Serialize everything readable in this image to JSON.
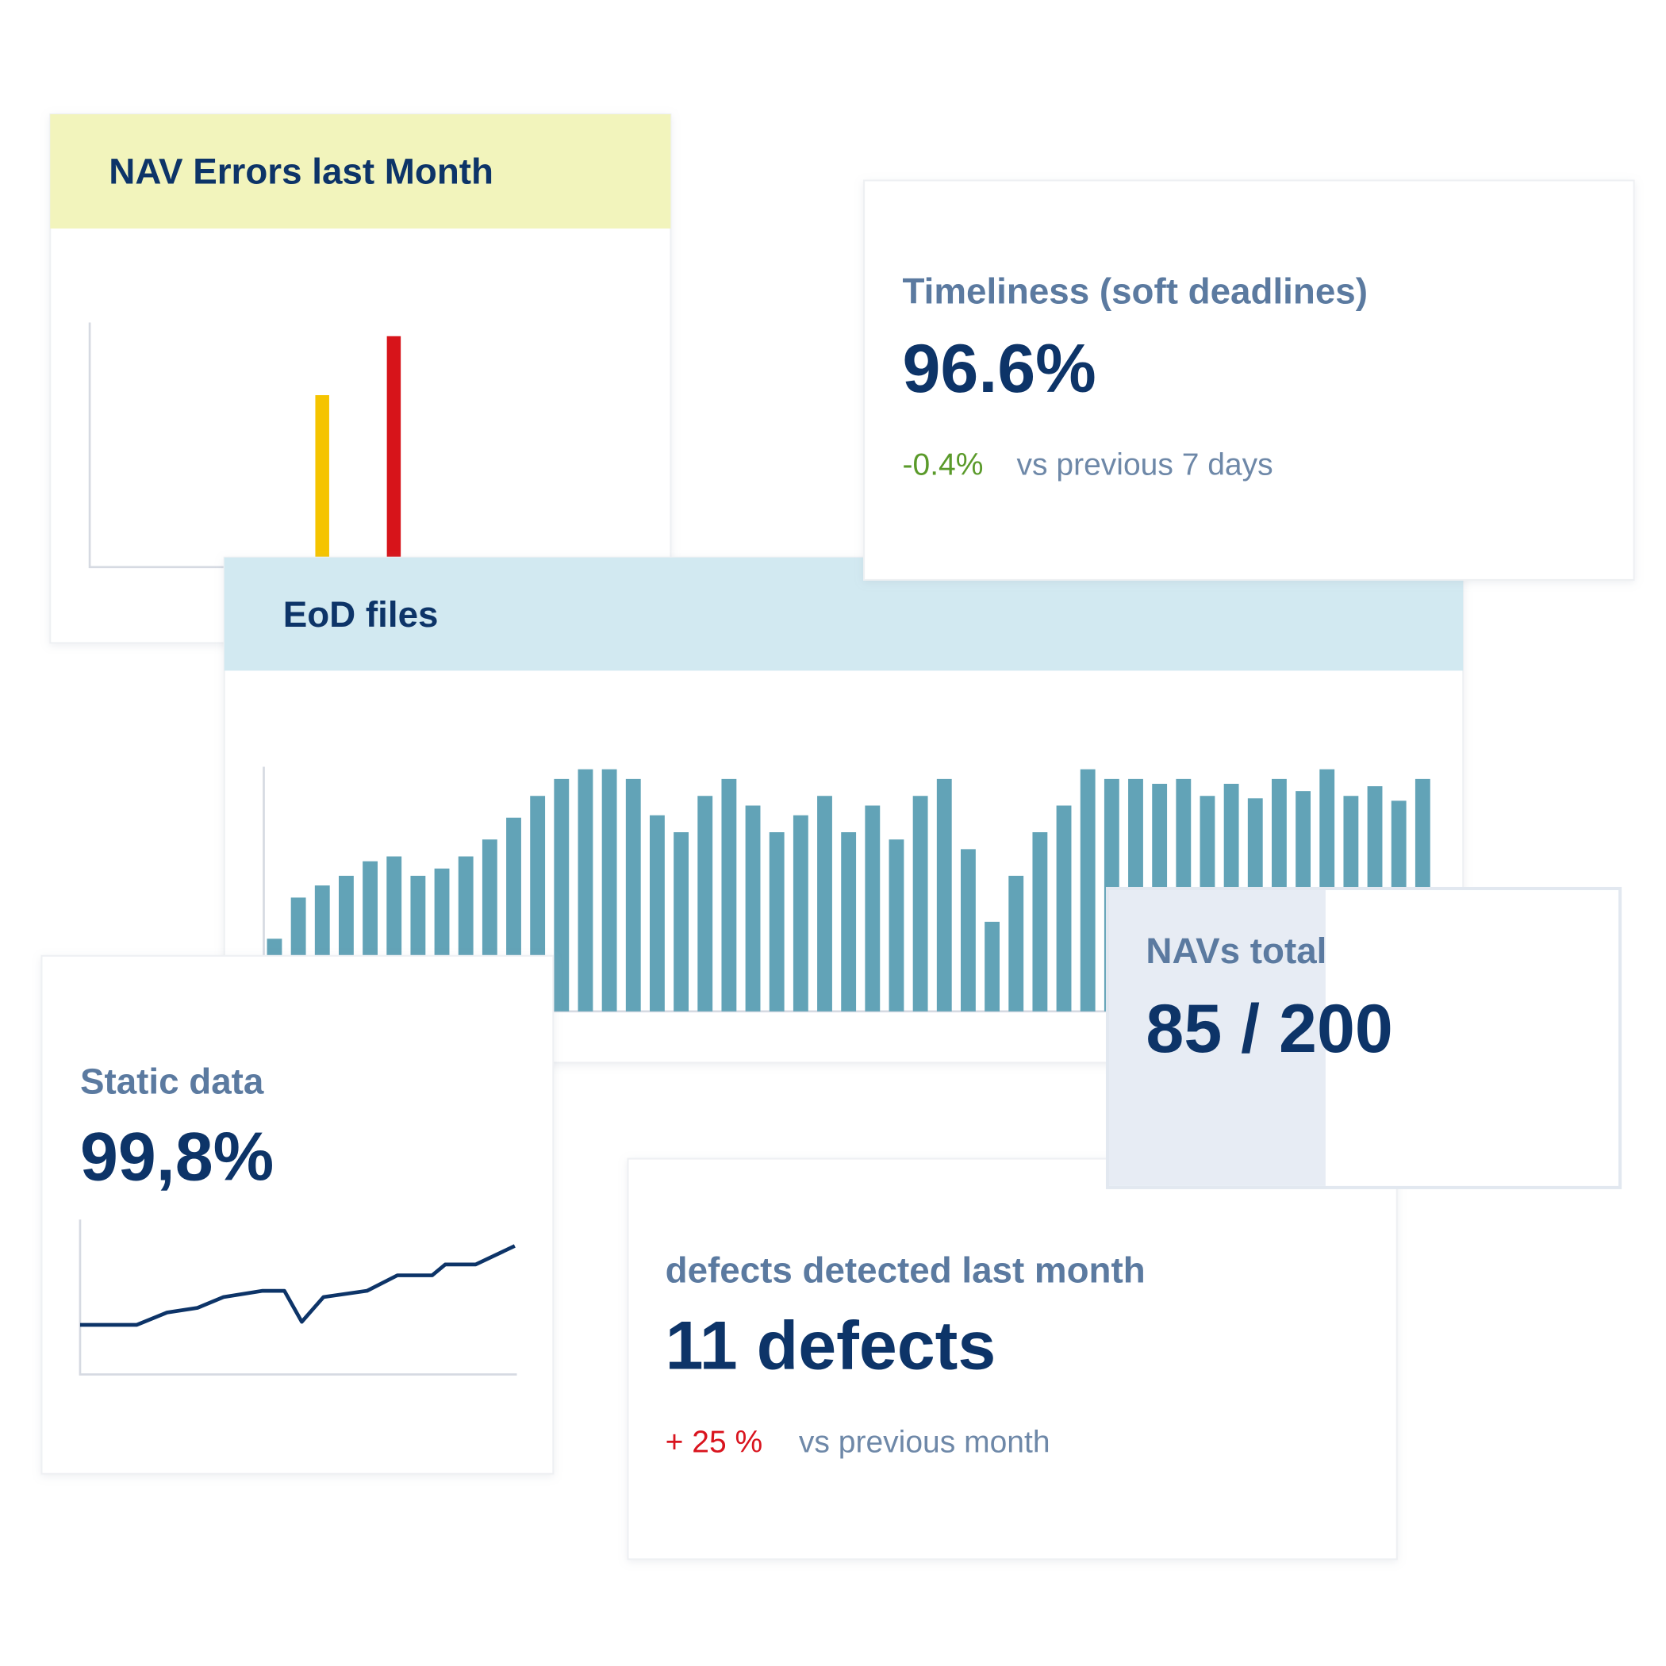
{
  "chart_data": [
    {
      "type": "bar",
      "title": "NAV Errors last Month",
      "values": [
        null,
        null,
        null,
        null,
        null,
        null,
        70,
        null,
        94,
        null,
        null,
        null,
        null,
        null,
        null,
        null
      ],
      "colors": [
        null,
        null,
        null,
        null,
        null,
        null,
        "#f5c400",
        null,
        "#d7141a",
        null,
        null,
        null,
        null,
        null,
        null,
        null
      ],
      "ylim": [
        0,
        100
      ]
    },
    {
      "type": "bar",
      "title": "EoD files",
      "values": [
        30,
        47,
        52,
        56,
        62,
        64,
        56,
        59,
        64,
        71,
        80,
        89,
        96,
        100,
        100,
        96,
        81,
        74,
        89,
        96,
        85,
        74,
        81,
        89,
        74,
        85,
        71,
        89,
        96,
        67,
        37,
        56,
        74,
        85,
        100,
        96,
        96,
        94,
        96,
        89,
        94,
        88,
        96,
        91,
        100,
        89,
        93,
        87,
        96
      ],
      "color": "#62a3b7",
      "ylim": [
        0,
        105
      ]
    },
    {
      "type": "line",
      "title": "Static data",
      "value": "99,8%",
      "x": [
        0,
        13,
        20,
        27,
        33,
        42,
        47,
        51,
        56,
        66,
        73,
        81,
        84,
        91,
        100
      ],
      "values": [
        32,
        32,
        40,
        43,
        50,
        54,
        54,
        34,
        50,
        54,
        64,
        64,
        71,
        71,
        83
      ],
      "color": "#0d3468",
      "xlim": [
        0,
        100
      ],
      "ylim": [
        0,
        100
      ]
    }
  ],
  "cards": [
    {
      "title": "Timeliness (soft deadlines)",
      "value": "96.6%",
      "change": "-0.4%",
      "comparison": "vs previous 7 days"
    },
    {
      "title": "defects detected last month",
      "value": "11 defects",
      "change": "+ 25 %",
      "comparison": "vs previous month"
    },
    {
      "title": "NAVs total",
      "values": [
        85,
        200
      ],
      "value_label": "85 / 200"
    }
  ]
}
